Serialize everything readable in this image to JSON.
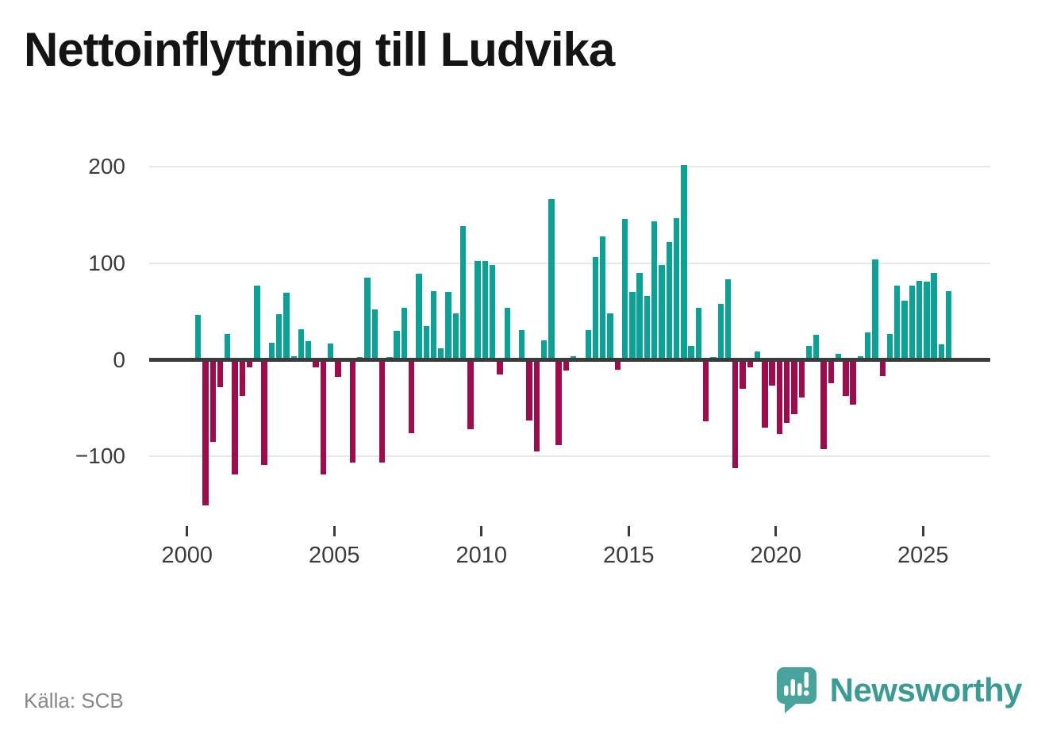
{
  "title": "Nettoinflyttning till Ludvika",
  "source": "Källa: SCB",
  "logo": {
    "text": "Newsworthy",
    "icon": "newsworthy-speech-bubble-chart-icon"
  },
  "chart_data": {
    "type": "bar",
    "title": "Nettoinflyttning till Ludvika",
    "xlabel": "",
    "ylabel": "",
    "frequency": "quarterly",
    "grid": "horizontal-only",
    "legend_position": "none",
    "ylim": [
      -165,
      215
    ],
    "y_ticks": [
      200,
      100,
      0,
      -100
    ],
    "x_ticks": [
      2000,
      2005,
      2010,
      2015,
      2020,
      2025
    ],
    "years": [
      {
        "year": 2000,
        "values": [
          0,
          46,
          -151,
          -85
        ]
      },
      {
        "year": 2001,
        "values": [
          -28,
          27,
          -119,
          -37
        ]
      },
      {
        "year": 2002,
        "values": [
          -8,
          77,
          -109,
          18
        ]
      },
      {
        "year": 2003,
        "values": [
          47,
          69,
          4,
          32
        ]
      },
      {
        "year": 2004,
        "values": [
          19,
          -8,
          -119,
          17
        ]
      },
      {
        "year": 2005,
        "values": [
          -18,
          0,
          -106,
          3
        ]
      },
      {
        "year": 2006,
        "values": [
          85,
          52,
          -106,
          3
        ]
      },
      {
        "year": 2007,
        "values": [
          30,
          54,
          -76,
          89
        ]
      },
      {
        "year": 2008,
        "values": [
          35,
          71,
          12,
          70
        ]
      },
      {
        "year": 2009,
        "values": [
          48,
          138,
          -72,
          102
        ]
      },
      {
        "year": 2010,
        "values": [
          102,
          98,
          -15,
          54
        ]
      },
      {
        "year": 2011,
        "values": [
          0,
          31,
          -63,
          -95
        ]
      },
      {
        "year": 2012,
        "values": [
          20,
          166,
          -88,
          -11
        ]
      },
      {
        "year": 2013,
        "values": [
          4,
          0,
          31,
          106
        ]
      },
      {
        "year": 2014,
        "values": [
          128,
          48,
          -10,
          146
        ]
      },
      {
        "year": 2015,
        "values": [
          70,
          90,
          66,
          143
        ]
      },
      {
        "year": 2016,
        "values": [
          98,
          122,
          147,
          202
        ]
      },
      {
        "year": 2017,
        "values": [
          14,
          54,
          -64,
          3
        ]
      },
      {
        "year": 2018,
        "values": [
          58,
          83,
          -112,
          -30
        ]
      },
      {
        "year": 2019,
        "values": [
          -8,
          9,
          -70,
          -27
        ]
      },
      {
        "year": 2020,
        "values": [
          -77,
          -65,
          -56,
          -39
        ]
      },
      {
        "year": 2021,
        "values": [
          14,
          26,
          -92,
          -24
        ]
      },
      {
        "year": 2022,
        "values": [
          6,
          -37,
          -46,
          4
        ]
      },
      {
        "year": 2023,
        "values": [
          28,
          104,
          -17,
          27
        ]
      },
      {
        "year": 2024,
        "values": [
          77,
          61,
          77,
          82
        ]
      },
      {
        "year": 2025,
        "values": [
          81,
          90,
          16,
          71
        ]
      }
    ],
    "colors": {
      "positive": "#0aa296",
      "negative": "#a00c4b",
      "axis_line": "#3b3b3b",
      "gridline": "#e7e7e7",
      "tick_text": "#3c3c3c",
      "title_text": "#141414",
      "source_text": "#878787",
      "logo_teal": "#3a9a94",
      "logo_icon_fill": "#47a39b"
    }
  }
}
